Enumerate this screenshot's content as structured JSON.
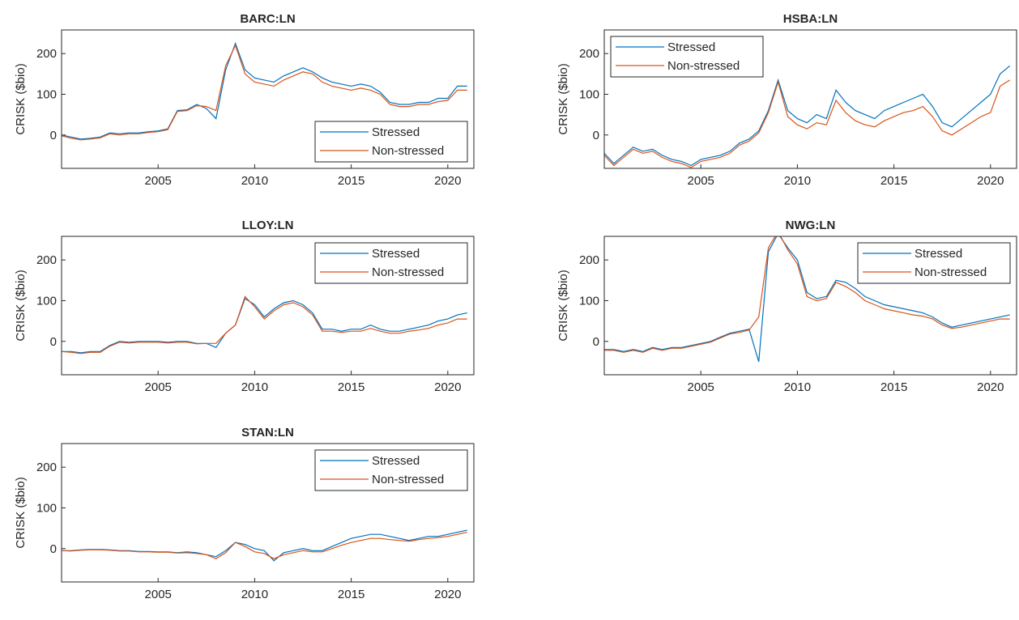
{
  "chart_data": [
    {
      "type": "line",
      "title": "BARC:LN",
      "ylabel": "CRISK ($bio)",
      "legend": "lower right",
      "x": [
        2000.0,
        2000.5,
        2001.0,
        2001.5,
        2002.0,
        2002.5,
        2003.0,
        2003.5,
        2004.0,
        2004.5,
        2005.0,
        2005.5,
        2006.0,
        2006.5,
        2007.0,
        2007.5,
        2008.0,
        2008.5,
        2009.0,
        2009.5,
        2010.0,
        2010.5,
        2011.0,
        2011.5,
        2012.0,
        2012.5,
        2013.0,
        2013.5,
        2014.0,
        2014.5,
        2015.0,
        2015.5,
        2016.0,
        2016.5,
        2017.0,
        2017.5,
        2018.0,
        2018.5,
        2019.0,
        2019.5,
        2020.0,
        2020.5,
        2021.0
      ],
      "series": [
        {
          "name": "Stressed",
          "color": "#0072bd",
          "values": [
            0,
            -5,
            -10,
            -8,
            -5,
            5,
            3,
            5,
            5,
            8,
            10,
            15,
            60,
            62,
            75,
            65,
            40,
            160,
            225,
            160,
            140,
            135,
            130,
            145,
            155,
            165,
            155,
            140,
            130,
            125,
            120,
            125,
            120,
            105,
            80,
            75,
            75,
            80,
            80,
            90,
            90,
            120,
            120
          ]
        },
        {
          "name": "Non-stressed",
          "color": "#d95319",
          "values": [
            -2,
            -8,
            -12,
            -10,
            -7,
            3,
            0,
            3,
            3,
            6,
            8,
            13,
            58,
            60,
            72,
            70,
            60,
            170,
            220,
            150,
            130,
            125,
            120,
            135,
            145,
            155,
            150,
            130,
            120,
            115,
            110,
            115,
            110,
            100,
            75,
            70,
            70,
            75,
            75,
            82,
            85,
            110,
            110
          ]
        }
      ],
      "xlim": [
        2000.0,
        2021.35
      ],
      "ylim": [
        -82,
        258
      ],
      "xticks": [
        2005,
        2010,
        2015,
        2020
      ],
      "yticks": [
        0,
        100,
        200
      ]
    },
    {
      "type": "line",
      "title": "HSBA:LN",
      "ylabel": "CRISK ($bio)",
      "legend": "upper left",
      "x": [
        2000.0,
        2000.5,
        2001.0,
        2001.5,
        2002.0,
        2002.5,
        2003.0,
        2003.5,
        2004.0,
        2004.5,
        2005.0,
        2005.5,
        2006.0,
        2006.5,
        2007.0,
        2007.5,
        2008.0,
        2008.5,
        2009.0,
        2009.5,
        2010.0,
        2010.5,
        2011.0,
        2011.5,
        2012.0,
        2012.5,
        2013.0,
        2013.5,
        2014.0,
        2014.5,
        2015.0,
        2015.5,
        2016.0,
        2016.5,
        2017.0,
        2017.5,
        2018.0,
        2018.5,
        2019.0,
        2019.5,
        2020.0,
        2020.5,
        2021.0
      ],
      "series": [
        {
          "name": "Stressed",
          "color": "#0072bd",
          "values": [
            -45,
            -70,
            -50,
            -30,
            -40,
            -35,
            -50,
            -60,
            -65,
            -75,
            -60,
            -55,
            -50,
            -40,
            -20,
            -10,
            10,
            60,
            135,
            60,
            40,
            30,
            50,
            40,
            110,
            80,
            60,
            50,
            40,
            60,
            70,
            80,
            90,
            100,
            70,
            30,
            20,
            40,
            60,
            80,
            100,
            150,
            170
          ]
        },
        {
          "name": "Non-stressed",
          "color": "#d95319",
          "values": [
            -50,
            -75,
            -55,
            -35,
            -45,
            -40,
            -55,
            -65,
            -70,
            -80,
            -65,
            -60,
            -55,
            -45,
            -25,
            -15,
            5,
            55,
            130,
            45,
            25,
            15,
            30,
            25,
            85,
            55,
            35,
            25,
            20,
            35,
            45,
            55,
            60,
            70,
            45,
            10,
            0,
            15,
            30,
            45,
            55,
            120,
            135
          ]
        }
      ],
      "xlim": [
        2000.0,
        2021.35
      ],
      "ylim": [
        -82,
        258
      ],
      "xticks": [
        2005,
        2010,
        2015,
        2020
      ],
      "yticks": [
        0,
        100,
        200
      ]
    },
    {
      "type": "line",
      "title": "LLOY:LN",
      "ylabel": "CRISK ($bio)",
      "legend": "upper right",
      "x": [
        2000.0,
        2000.5,
        2001.0,
        2001.5,
        2002.0,
        2002.5,
        2003.0,
        2003.5,
        2004.0,
        2004.5,
        2005.0,
        2005.5,
        2006.0,
        2006.5,
        2007.0,
        2007.5,
        2008.0,
        2008.5,
        2009.0,
        2009.5,
        2010.0,
        2010.5,
        2011.0,
        2011.5,
        2012.0,
        2012.5,
        2013.0,
        2013.5,
        2014.0,
        2014.5,
        2015.0,
        2015.5,
        2016.0,
        2016.5,
        2017.0,
        2017.5,
        2018.0,
        2018.5,
        2019.0,
        2019.5,
        2020.0,
        2020.5,
        2021.0
      ],
      "series": [
        {
          "name": "Stressed",
          "color": "#0072bd",
          "values": [
            -25,
            -25,
            -28,
            -25,
            -25,
            -10,
            0,
            -2,
            0,
            0,
            0,
            -2,
            0,
            0,
            -5,
            -5,
            -15,
            20,
            40,
            105,
            90,
            60,
            80,
            95,
            100,
            90,
            70,
            30,
            30,
            25,
            30,
            30,
            40,
            30,
            25,
            25,
            30,
            35,
            40,
            50,
            55,
            65,
            70
          ]
        },
        {
          "name": "Non-stressed",
          "color": "#d95319",
          "values": [
            -25,
            -27,
            -30,
            -27,
            -27,
            -12,
            -2,
            -4,
            -2,
            -2,
            -2,
            -4,
            -2,
            -2,
            -6,
            -5,
            -5,
            20,
            40,
            110,
            85,
            55,
            75,
            90,
            95,
            85,
            65,
            25,
            25,
            22,
            25,
            25,
            32,
            25,
            20,
            20,
            25,
            28,
            32,
            40,
            45,
            55,
            55
          ]
        }
      ],
      "xlim": [
        2000.0,
        2021.35
      ],
      "ylim": [
        -82,
        258
      ],
      "xticks": [
        2005,
        2010,
        2015,
        2020
      ],
      "yticks": [
        0,
        100,
        200
      ]
    },
    {
      "type": "line",
      "title": "NWG:LN",
      "ylabel": "CRISK ($bio)",
      "legend": "upper right",
      "x": [
        2000.0,
        2000.5,
        2001.0,
        2001.5,
        2002.0,
        2002.5,
        2003.0,
        2003.5,
        2004.0,
        2004.5,
        2005.0,
        2005.5,
        2006.0,
        2006.5,
        2007.0,
        2007.5,
        2008.0,
        2008.5,
        2009.0,
        2009.5,
        2010.0,
        2010.5,
        2011.0,
        2011.5,
        2012.0,
        2012.5,
        2013.0,
        2013.5,
        2014.0,
        2014.5,
        2015.0,
        2015.5,
        2016.0,
        2016.5,
        2017.0,
        2017.5,
        2018.0,
        2018.5,
        2019.0,
        2019.5,
        2020.0,
        2020.5,
        2021.0
      ],
      "series": [
        {
          "name": "Stressed",
          "color": "#0072bd",
          "values": [
            -20,
            -20,
            -25,
            -20,
            -25,
            -15,
            -20,
            -15,
            -15,
            -10,
            -5,
            0,
            10,
            20,
            25,
            30,
            -50,
            220,
            265,
            230,
            200,
            120,
            105,
            110,
            150,
            145,
            130,
            110,
            100,
            90,
            85,
            80,
            75,
            70,
            60,
            45,
            35,
            40,
            45,
            50,
            55,
            60,
            65
          ]
        },
        {
          "name": "Non-stressed",
          "color": "#d95319",
          "values": [
            -22,
            -22,
            -27,
            -22,
            -27,
            -17,
            -22,
            -17,
            -17,
            -12,
            -7,
            -2,
            8,
            18,
            22,
            28,
            60,
            230,
            270,
            225,
            190,
            110,
            100,
            105,
            145,
            135,
            120,
            100,
            90,
            80,
            75,
            70,
            65,
            62,
            55,
            40,
            32,
            35,
            40,
            45,
            50,
            55,
            55
          ]
        }
      ],
      "xlim": [
        2000.0,
        2021.35
      ],
      "ylim": [
        -82,
        258
      ],
      "xticks": [
        2005,
        2010,
        2015,
        2020
      ],
      "yticks": [
        0,
        100,
        200
      ]
    },
    {
      "type": "line",
      "title": "STAN:LN",
      "ylabel": "CRISK ($bio)",
      "legend": "upper right",
      "x": [
        2000.0,
        2000.5,
        2001.0,
        2001.5,
        2002.0,
        2002.5,
        2003.0,
        2003.5,
        2004.0,
        2004.5,
        2005.0,
        2005.5,
        2006.0,
        2006.5,
        2007.0,
        2007.5,
        2008.0,
        2008.5,
        2009.0,
        2009.5,
        2010.0,
        2010.5,
        2011.0,
        2011.5,
        2012.0,
        2012.5,
        2013.0,
        2013.5,
        2014.0,
        2014.5,
        2015.0,
        2015.5,
        2016.0,
        2016.5,
        2017.0,
        2017.5,
        2018.0,
        2018.5,
        2019.0,
        2019.5,
        2020.0,
        2020.5,
        2021.0
      ],
      "series": [
        {
          "name": "Stressed",
          "color": "#0072bd",
          "values": [
            -5,
            -5,
            -3,
            -2,
            -2,
            -3,
            -5,
            -5,
            -7,
            -7,
            -8,
            -8,
            -10,
            -8,
            -10,
            -15,
            -20,
            -5,
            15,
            10,
            0,
            -5,
            -30,
            -10,
            -5,
            0,
            -5,
            -5,
            5,
            15,
            25,
            30,
            35,
            35,
            30,
            25,
            20,
            25,
            30,
            30,
            35,
            40,
            45
          ]
        },
        {
          "name": "Non-stressed",
          "color": "#d95319",
          "values": [
            -5,
            -6,
            -4,
            -3,
            -3,
            -4,
            -6,
            -6,
            -8,
            -8,
            -9,
            -9,
            -11,
            -10,
            -12,
            -15,
            -25,
            -10,
            15,
            5,
            -8,
            -12,
            -25,
            -15,
            -10,
            -5,
            -8,
            -8,
            0,
            8,
            15,
            20,
            25,
            25,
            22,
            20,
            18,
            22,
            25,
            27,
            30,
            35,
            40
          ]
        }
      ],
      "xlim": [
        2000.0,
        2021.35
      ],
      "ylim": [
        -82,
        258
      ],
      "xticks": [
        2005,
        2010,
        2015,
        2020
      ],
      "yticks": [
        0,
        100,
        200
      ]
    }
  ]
}
